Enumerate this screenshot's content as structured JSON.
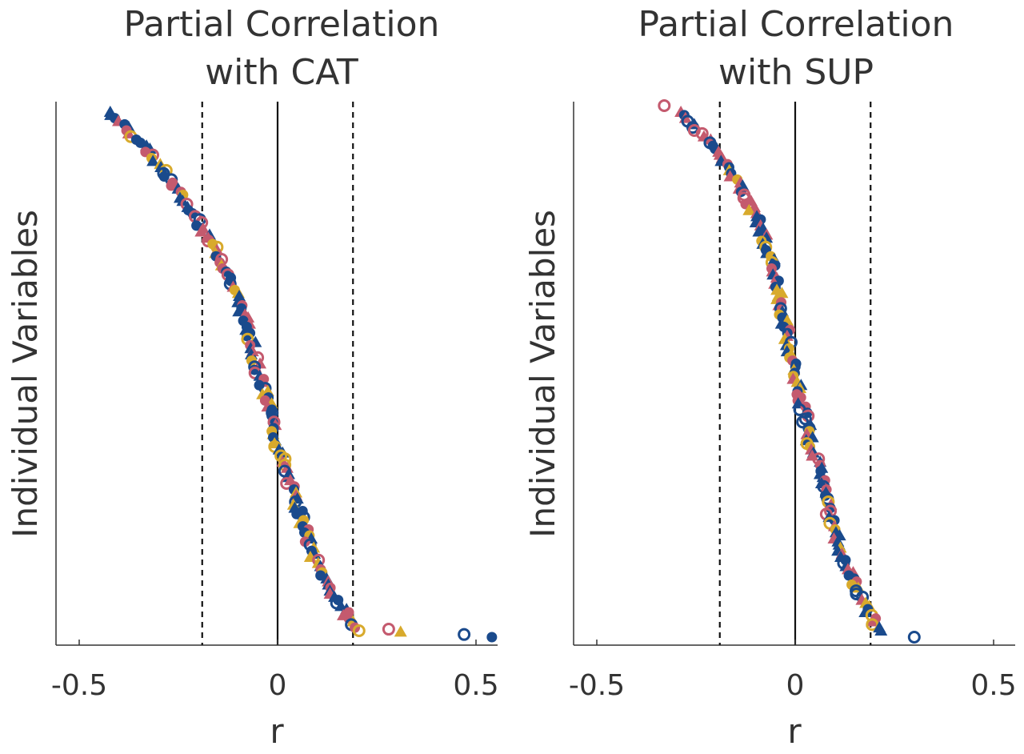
{
  "colors": {
    "blue": "#1a4a8c",
    "pink": "#c45a6e",
    "gold": "#d8aa2c",
    "axis": "#333333"
  },
  "chart_data": [
    {
      "type": "scatter",
      "title_lines": [
        "Partial Correlation",
        "with CAT"
      ],
      "xlabel": "r",
      "ylabel": "Individual Variables",
      "xlim": [
        -0.55,
        0.55
      ],
      "xticks": [
        -0.5,
        0,
        0.5
      ],
      "xtick_labels": [
        "-0.5",
        "0",
        "0.5"
      ],
      "reference_lines": [
        {
          "x": -0.19,
          "style": "dashed"
        },
        {
          "x": 0,
          "style": "solid"
        },
        {
          "x": 0.19,
          "style": "dashed"
        }
      ],
      "marker_types": [
        "filled-circle",
        "open-circle",
        "triangle"
      ],
      "series_colors": [
        "blue",
        "pink",
        "gold"
      ],
      "n_variables": 170,
      "curve_r_quantiles": [
        -0.42,
        -0.33,
        -0.26,
        -0.2,
        -0.14,
        -0.1,
        -0.07,
        -0.05,
        -0.02,
        0.0,
        0.03,
        0.06,
        0.09,
        0.14,
        0.2
      ],
      "outliers": [
        {
          "r": 0.28,
          "rank_fraction": 0.985,
          "marker": "open-circle",
          "color": "pink"
        },
        {
          "r": 0.31,
          "rank_fraction": 0.99,
          "marker": "triangle",
          "color": "gold"
        },
        {
          "r": 0.47,
          "rank_fraction": 0.995,
          "marker": "open-circle",
          "color": "blue"
        },
        {
          "r": 0.54,
          "rank_fraction": 1.0,
          "marker": "filled-circle",
          "color": "blue"
        }
      ]
    },
    {
      "type": "scatter",
      "title_lines": [
        "Partial Correlation",
        "with SUP"
      ],
      "xlabel": "r",
      "ylabel": "Individual Variables",
      "xlim": [
        -0.55,
        0.55
      ],
      "xticks": [
        -0.5,
        0,
        0.5
      ],
      "xtick_labels": [
        "-0.5",
        "0",
        "0.5"
      ],
      "reference_lines": [
        {
          "x": -0.19,
          "style": "dashed"
        },
        {
          "x": 0,
          "style": "solid"
        },
        {
          "x": 0.19,
          "style": "dashed"
        }
      ],
      "marker_types": [
        "filled-circle",
        "open-circle",
        "triangle"
      ],
      "series_colors": [
        "blue",
        "pink",
        "gold"
      ],
      "n_variables": 170,
      "curve_r_quantiles": [
        -0.29,
        -0.2,
        -0.14,
        -0.09,
        -0.06,
        -0.04,
        -0.02,
        0.0,
        0.02,
        0.04,
        0.07,
        0.09,
        0.12,
        0.16,
        0.21
      ],
      "outliers": [
        {
          "r": -0.33,
          "rank_fraction": 0.0,
          "marker": "open-circle",
          "color": "pink"
        },
        {
          "r": 0.3,
          "rank_fraction": 1.0,
          "marker": "open-circle",
          "color": "blue"
        }
      ]
    }
  ]
}
